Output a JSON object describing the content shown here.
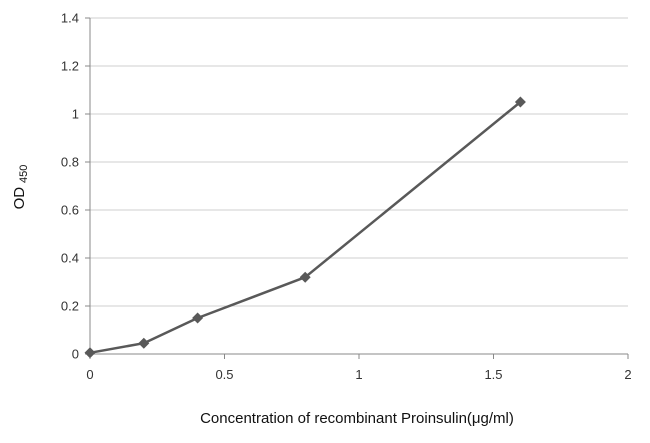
{
  "chart_data": {
    "type": "line",
    "title": "",
    "xlabel": "Concentration of  recombinant Proinsulin(μg/ml)",
    "ylabel": "OD",
    "ylabel_sub": "450",
    "xlim": [
      0,
      2
    ],
    "ylim": [
      0,
      1.4
    ],
    "xticks": [
      0,
      0.5,
      1,
      1.5,
      2
    ],
    "xtick_labels": [
      "0",
      "0.5",
      "1",
      "1.5",
      "2"
    ],
    "yticks": [
      0,
      0.2,
      0.4,
      0.6,
      0.8,
      1,
      1.2,
      1.4
    ],
    "ytick_labels": [
      "0",
      "0.2",
      "0.4",
      "0.6",
      "0.8",
      "1",
      "1.2",
      "1.4"
    ],
    "grid": true,
    "series": [
      {
        "color": "#595959",
        "marker": "diamond",
        "x": [
          0,
          0.2,
          0.4,
          0.8,
          1.6
        ],
        "y": [
          0.005,
          0.045,
          0.15,
          0.32,
          1.05
        ]
      }
    ]
  }
}
